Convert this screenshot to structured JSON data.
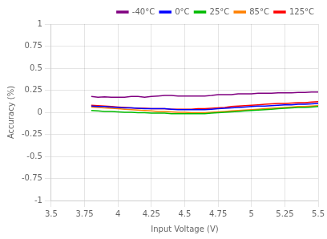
{
  "chart_data": {
    "type": "line",
    "xlabel": "Input Voltage (V)",
    "ylabel": "Accuracy (%)",
    "xlim": [
      3.5,
      5.5
    ],
    "ylim": [
      -1,
      1
    ],
    "xticks": [
      3.5,
      3.75,
      4,
      4.25,
      4.5,
      4.75,
      5,
      5.25,
      5.5
    ],
    "yticks": [
      -1,
      -0.75,
      -0.5,
      -0.25,
      0,
      0.25,
      0.5,
      0.75,
      1
    ],
    "grid": true,
    "legend": "upper right",
    "x": [
      3.8,
      3.85,
      3.9,
      3.95,
      4.0,
      4.05,
      4.1,
      4.15,
      4.2,
      4.25,
      4.3,
      4.35,
      4.4,
      4.45,
      4.5,
      4.55,
      4.6,
      4.65,
      4.7,
      4.75,
      4.8,
      4.85,
      4.9,
      4.95,
      5.0,
      5.05,
      5.1,
      5.15,
      5.2,
      5.25,
      5.3,
      5.35,
      5.4,
      5.45,
      5.5
    ],
    "series": [
      {
        "name": "-40°C",
        "color": "#800080",
        "values": [
          0.18,
          0.17,
          0.175,
          0.17,
          0.17,
          0.17,
          0.18,
          0.18,
          0.17,
          0.18,
          0.185,
          0.19,
          0.19,
          0.185,
          0.185,
          0.185,
          0.185,
          0.185,
          0.19,
          0.2,
          0.2,
          0.2,
          0.21,
          0.21,
          0.21,
          0.215,
          0.215,
          0.215,
          0.22,
          0.22,
          0.22,
          0.225,
          0.225,
          0.23,
          0.23
        ]
      },
      {
        "name": "0°C",
        "color": "#0000ff",
        "values": [
          0.07,
          0.065,
          0.065,
          0.06,
          0.055,
          0.05,
          0.05,
          0.045,
          0.04,
          0.04,
          0.04,
          0.04,
          0.035,
          0.03,
          0.03,
          0.03,
          0.03,
          0.03,
          0.035,
          0.04,
          0.045,
          0.05,
          0.055,
          0.06,
          0.065,
          0.07,
          0.07,
          0.075,
          0.08,
          0.085,
          0.085,
          0.09,
          0.09,
          0.095,
          0.1
        ]
      },
      {
        "name": "25°C",
        "color": "#00bb00",
        "values": [
          0.02,
          0.015,
          0.01,
          0.01,
          0.005,
          0.0,
          0.0,
          -0.005,
          -0.005,
          -0.01,
          -0.01,
          -0.01,
          -0.015,
          -0.015,
          -0.015,
          -0.015,
          -0.015,
          -0.015,
          -0.01,
          -0.005,
          0.0,
          0.005,
          0.01,
          0.015,
          0.02,
          0.025,
          0.03,
          0.035,
          0.04,
          0.045,
          0.05,
          0.055,
          0.055,
          0.06,
          0.065
        ]
      },
      {
        "name": "85°C",
        "color": "#ff8000",
        "values": [
          0.06,
          0.055,
          0.05,
          0.045,
          0.04,
          0.035,
          0.03,
          0.025,
          0.02,
          0.015,
          0.01,
          0.01,
          0.005,
          0.0,
          0.0,
          -0.005,
          -0.005,
          -0.005,
          0.0,
          0.005,
          0.01,
          0.015,
          0.02,
          0.025,
          0.03,
          0.035,
          0.04,
          0.045,
          0.05,
          0.055,
          0.06,
          0.065,
          0.065,
          0.07,
          0.075
        ]
      },
      {
        "name": "125°C",
        "color": "#ff0000",
        "values": [
          0.08,
          0.075,
          0.07,
          0.065,
          0.06,
          0.055,
          0.05,
          0.045,
          0.045,
          0.04,
          0.04,
          0.04,
          0.035,
          0.035,
          0.035,
          0.035,
          0.04,
          0.04,
          0.045,
          0.05,
          0.055,
          0.065,
          0.07,
          0.075,
          0.08,
          0.085,
          0.09,
          0.095,
          0.1,
          0.1,
          0.105,
          0.11,
          0.11,
          0.115,
          0.12
        ]
      }
    ]
  }
}
